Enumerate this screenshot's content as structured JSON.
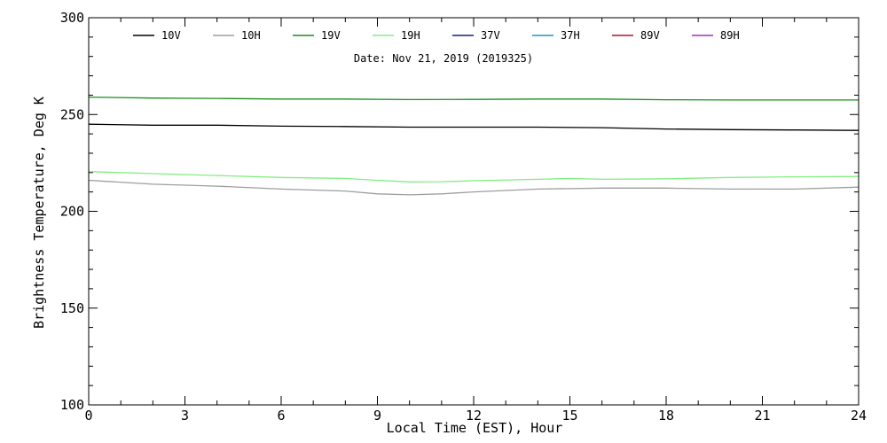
{
  "chart_data": {
    "type": "line",
    "subtitle": "Date: Nov 21, 2019 (2019325)",
    "xlabel": "Local Time (EST), Hour",
    "ylabel": "Brightness Temperature, Deg K",
    "xlim": [
      0,
      24
    ],
    "ylim": [
      100,
      300
    ],
    "x_ticks": [
      0,
      3,
      6,
      9,
      12,
      15,
      18,
      21,
      24
    ],
    "y_ticks": [
      100,
      150,
      200,
      250,
      300
    ],
    "grid": false,
    "legend_position": "top",
    "series": [
      {
        "name": "10V",
        "color": "#000000",
        "x": [
          0,
          2,
          4,
          6,
          8,
          10,
          12,
          14,
          16,
          18,
          20,
          22,
          24
        ],
        "y": [
          245,
          244.5,
          244.5,
          244,
          243.8,
          243.5,
          243.5,
          243.5,
          243.2,
          242.5,
          242.2,
          242,
          241.8
        ]
      },
      {
        "name": "10H",
        "color": "#9e9e9e",
        "x": [
          0,
          2,
          4,
          6,
          8,
          9,
          10,
          11,
          12,
          14,
          16,
          18,
          20,
          22,
          24
        ],
        "y": [
          216,
          214,
          213,
          211.5,
          210.5,
          209,
          208.5,
          209,
          210,
          211.5,
          212,
          212,
          211.5,
          211.5,
          212.5
        ]
      },
      {
        "name": "19V",
        "color": "#1a8c1a",
        "x": [
          0,
          2,
          4,
          6,
          8,
          10,
          12,
          14,
          16,
          18,
          20,
          22,
          24
        ],
        "y": [
          259,
          258.5,
          258.3,
          258,
          258,
          257.7,
          257.8,
          258,
          258,
          257.6,
          257.5,
          257.5,
          257.5
        ]
      },
      {
        "name": "19H",
        "color": "#80ee80",
        "x": [
          0,
          2,
          4,
          6,
          8,
          9,
          10,
          11,
          12,
          14,
          15,
          16,
          18,
          20,
          22,
          24
        ],
        "y": [
          220.5,
          219.5,
          218.5,
          217.5,
          217,
          216,
          215.2,
          215.3,
          215.8,
          216.5,
          217,
          216.5,
          216.8,
          217.5,
          217.8,
          218
        ]
      },
      {
        "name": "37V",
        "color": "#1a1a8c",
        "x": [],
        "y": []
      },
      {
        "name": "37H",
        "color": "#1e90d0",
        "x": [],
        "y": []
      },
      {
        "name": "89V",
        "color": "#b01030",
        "x": [],
        "y": []
      },
      {
        "name": "89H",
        "color": "#a030c0",
        "x": [],
        "y": []
      }
    ]
  }
}
